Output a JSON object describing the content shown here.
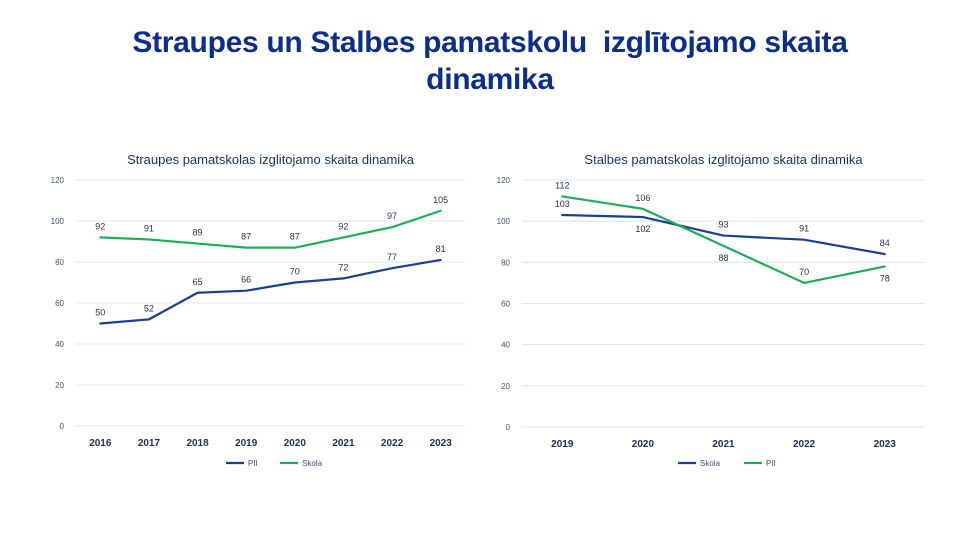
{
  "page": {
    "title_line1": "Straupes un Stalbes pamatskolu  izglītojamo skaita",
    "title_line2": "dinamika"
  },
  "colors": {
    "navy": "#1c3f94",
    "green": "#1fad5a",
    "title": "#0b2d8f"
  },
  "chart_data": [
    {
      "type": "line",
      "title": "Straupes pamatskolas izglitojamo skaita dinamika",
      "categories": [
        "2016",
        "2017",
        "2018",
        "2019",
        "2020",
        "2021",
        "2022",
        "2023"
      ],
      "ylim": [
        0,
        120
      ],
      "yticks": [
        0,
        20,
        40,
        60,
        80,
        100,
        120
      ],
      "legend_position": "bottom",
      "series": [
        {
          "name": "PII",
          "color": "#1c3f94",
          "values": [
            50,
            52,
            65,
            66,
            70,
            72,
            77,
            81
          ],
          "label_side": "above"
        },
        {
          "name": "Skola",
          "color": "#1fad5a",
          "values": [
            92,
            91,
            89,
            87,
            87,
            92,
            97,
            105
          ],
          "label_side": "above"
        }
      ]
    },
    {
      "type": "line",
      "title": "Stalbes pamatskolas izglitojamo skaita dinamika",
      "categories": [
        "2019",
        "2020",
        "2021",
        "2022",
        "2023"
      ],
      "ylim": [
        0,
        120
      ],
      "yticks": [
        0,
        20,
        40,
        60,
        80,
        100,
        120
      ],
      "legend_position": "bottom",
      "series": [
        {
          "name": "Skola",
          "color": "#1c3f94",
          "values": [
            103,
            102,
            93,
            91,
            84
          ],
          "label_sides": [
            "above",
            "below",
            "above",
            "above",
            "above"
          ]
        },
        {
          "name": "PII",
          "color": "#1fad5a",
          "values": [
            112,
            106,
            88,
            70,
            78
          ],
          "label_sides": [
            "above",
            "above",
            "below",
            "above",
            "below"
          ]
        }
      ]
    }
  ]
}
